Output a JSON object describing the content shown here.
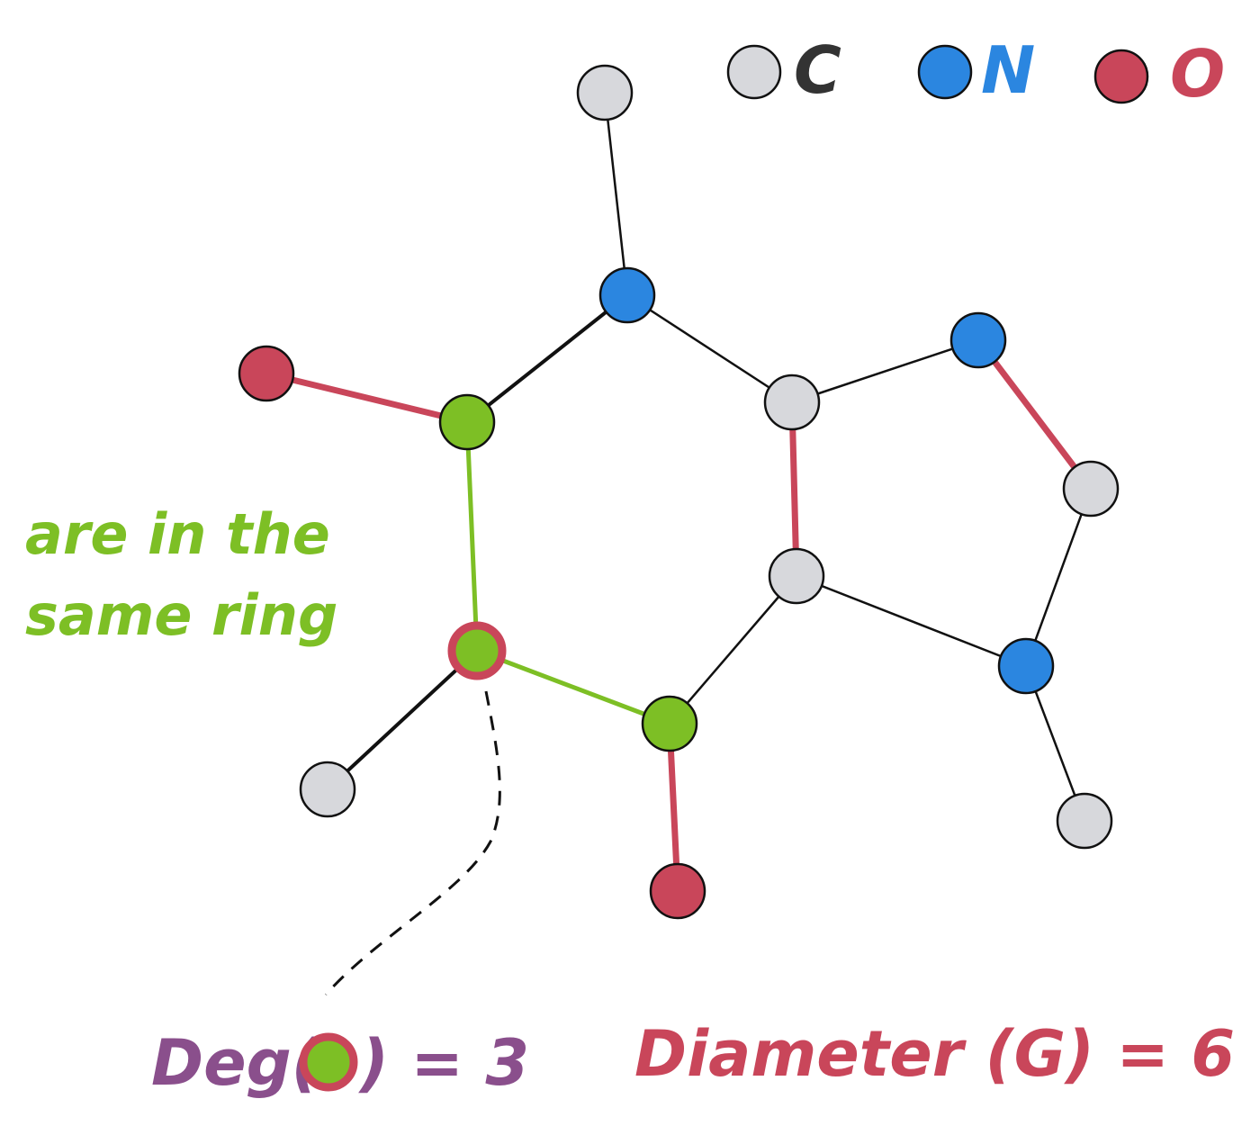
{
  "legend": [
    {
      "label": "C",
      "color": "#d7d8dc",
      "text_color": "#333333"
    },
    {
      "label": "N",
      "color": "#2b86e0",
      "text_color": "#2b86e0"
    },
    {
      "label": "O",
      "color": "#c9465a",
      "text_color": "#c9465a"
    }
  ],
  "annotations": {
    "same_ring_line1": "are in the",
    "same_ring_line2": "same ring",
    "deg_prefix": "Deg(",
    "deg_suffix": ") = 3",
    "diameter": "Diameter (G) = 6"
  },
  "colors": {
    "carbon": "#d7d8dc",
    "nitrogen": "#2b86e0",
    "oxygen": "#c9465a",
    "highlight": "#7dbf25",
    "ring_text": "#7dbf25",
    "deg_text": "#8a4f8c",
    "diameter_text": "#c9465a",
    "edge": "#111111"
  },
  "molecule": {
    "nodes": [
      {
        "id": "c_top",
        "element": "C"
      },
      {
        "id": "n_top",
        "element": "N"
      },
      {
        "id": "o_left",
        "element": "O"
      },
      {
        "id": "g_upper",
        "element": "C",
        "highlight": "ring"
      },
      {
        "id": "c_ring_upper",
        "element": "C"
      },
      {
        "id": "n_right",
        "element": "N"
      },
      {
        "id": "c_right",
        "element": "C"
      },
      {
        "id": "c_ring_lower",
        "element": "C"
      },
      {
        "id": "n_lower",
        "element": "N"
      },
      {
        "id": "g_focus",
        "element": "C",
        "highlight": "degree"
      },
      {
        "id": "g_lower",
        "element": "C",
        "highlight": "ring"
      },
      {
        "id": "c_left_bottom",
        "element": "C"
      },
      {
        "id": "o_bottom",
        "element": "O"
      },
      {
        "id": "c_bottom_right",
        "element": "C"
      }
    ],
    "edges": [
      {
        "from": "c_top",
        "to": "n_top",
        "style": "plain"
      },
      {
        "from": "n_top",
        "to": "g_upper",
        "style": "plain"
      },
      {
        "from": "n_top",
        "to": "c_ring_upper",
        "style": "plain"
      },
      {
        "from": "o_left",
        "to": "g_upper",
        "style": "diameter"
      },
      {
        "from": "g_upper",
        "to": "g_focus",
        "style": "ring"
      },
      {
        "from": "g_focus",
        "to": "g_lower",
        "style": "ring"
      },
      {
        "from": "g_focus",
        "to": "c_left_bottom",
        "style": "plain"
      },
      {
        "from": "g_lower",
        "to": "c_ring_lower",
        "style": "plain"
      },
      {
        "from": "g_lower",
        "to": "o_bottom",
        "style": "diameter"
      },
      {
        "from": "c_ring_upper",
        "to": "c_ring_lower",
        "style": "diameter"
      },
      {
        "from": "c_ring_upper",
        "to": "n_right",
        "style": "plain"
      },
      {
        "from": "n_right",
        "to": "c_right",
        "style": "diameter"
      },
      {
        "from": "c_right",
        "to": "n_lower",
        "style": "plain"
      },
      {
        "from": "c_ring_lower",
        "to": "n_lower",
        "style": "plain"
      },
      {
        "from": "n_lower",
        "to": "c_bottom_right",
        "style": "plain"
      }
    ]
  }
}
